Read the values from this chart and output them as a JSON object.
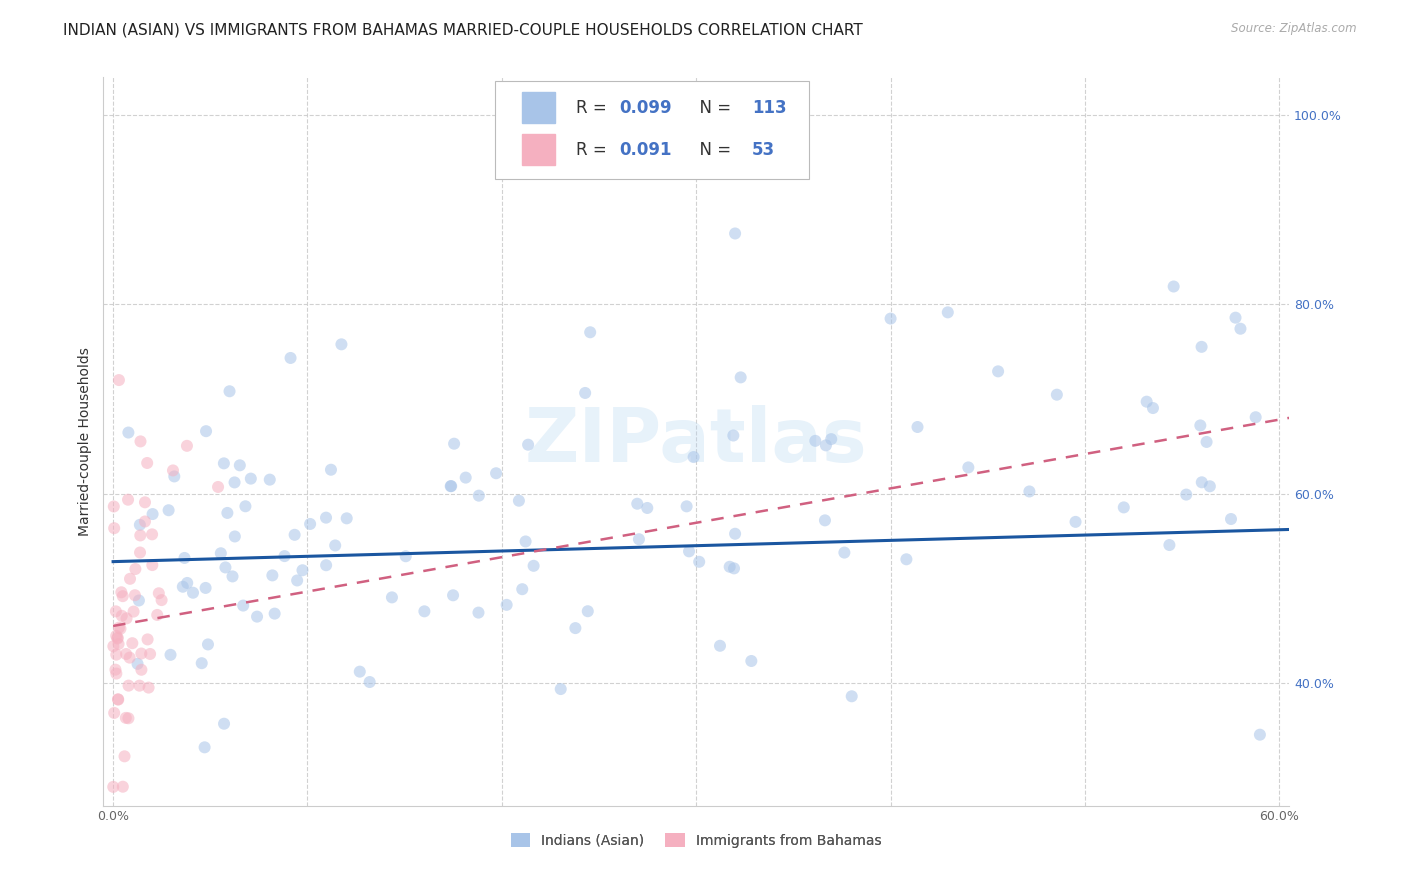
{
  "title": "INDIAN (ASIAN) VS IMMIGRANTS FROM BAHAMAS MARRIED-COUPLE HOUSEHOLDS CORRELATION CHART",
  "source": "Source: ZipAtlas.com",
  "ylabel": "Married-couple Households",
  "xlim": [
    -0.005,
    0.605
  ],
  "ylim": [
    0.27,
    1.04
  ],
  "xticks": [
    0.0,
    0.1,
    0.2,
    0.3,
    0.4,
    0.5,
    0.6
  ],
  "xticklabels": [
    "0.0%",
    "",
    "",
    "",
    "",
    "",
    "60.0%"
  ],
  "yticks": [
    0.4,
    0.6,
    0.8,
    1.0
  ],
  "yticklabels": [
    "40.0%",
    "60.0%",
    "80.0%",
    "100.0%"
  ],
  "blue_color": "#a8c4e8",
  "blue_line_color": "#1a56a0",
  "pink_color": "#f5b0c0",
  "pink_line_color": "#d06080",
  "legend_label_blue": "Indians (Asian)",
  "legend_label_pink": "Immigrants from Bahamas",
  "watermark": "ZIPatlas",
  "blue_N": 113,
  "pink_N": 53,
  "blue_trend_x": [
    0.0,
    0.605
  ],
  "blue_trend_y": [
    0.528,
    0.562
  ],
  "pink_trend_x": [
    0.0,
    0.605
  ],
  "pink_trend_y": [
    0.46,
    0.68
  ],
  "grid_color": "#cccccc",
  "background_color": "#ffffff",
  "title_fontsize": 11,
  "axis_label_fontsize": 10,
  "tick_fontsize": 9,
  "marker_size": 75,
  "marker_alpha": 0.55
}
